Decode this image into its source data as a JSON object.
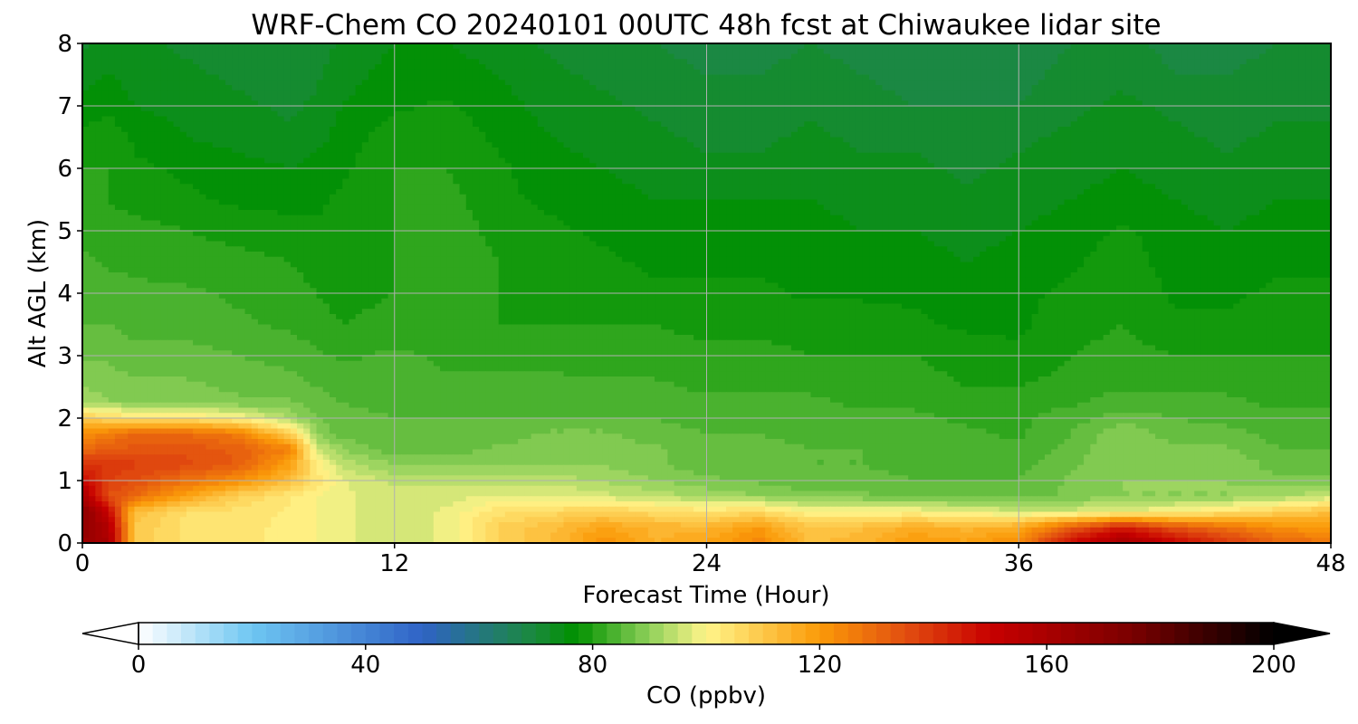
{
  "chart_data": {
    "type": "heatmap",
    "title": "WRF-Chem CO  20240101 00UTC 48h fcst at Chiwaukee lidar site",
    "xlabel": "Forecast Time (Hour)",
    "ylabel": "Alt AGL (km)",
    "xlim": [
      0,
      48
    ],
    "ylim": [
      0,
      8
    ],
    "xticks": [
      "0",
      "12",
      "24",
      "36",
      "48"
    ],
    "yticks": [
      "0",
      "1",
      "2",
      "3",
      "4",
      "5",
      "6",
      "7",
      "8"
    ],
    "grid": true,
    "colorbar": {
      "label": "CO  (ppbv)",
      "range": [
        0,
        200
      ],
      "ticks": [
        "0",
        "40",
        "80",
        "120",
        "160",
        "200"
      ],
      "extend": "both",
      "stops": [
        {
          "v": 0,
          "c": "#ffffff"
        },
        {
          "v": 20,
          "c": "#6ec6f2"
        },
        {
          "v": 50,
          "c": "#2f63c6"
        },
        {
          "v": 70,
          "c": "#1a8a3a"
        },
        {
          "v": 77,
          "c": "#009100"
        },
        {
          "v": 90,
          "c": "#8fd05a"
        },
        {
          "v": 100,
          "c": "#fff58a"
        },
        {
          "v": 120,
          "c": "#fb9a08"
        },
        {
          "v": 135,
          "c": "#e24f10"
        },
        {
          "v": 150,
          "c": "#c80000"
        },
        {
          "v": 175,
          "c": "#7a0000"
        },
        {
          "v": 200,
          "c": "#000000"
        }
      ],
      "under_color": "#ffffff",
      "over_color": "#000000"
    },
    "x": [
      0,
      1,
      2,
      4,
      6,
      8,
      9,
      10,
      12,
      14,
      16,
      18,
      20,
      22,
      24,
      26,
      28,
      30,
      32,
      34,
      36,
      38,
      40,
      42,
      44,
      46,
      48
    ],
    "y": [
      0,
      0.25,
      0.5,
      0.75,
      1.0,
      1.25,
      1.5,
      1.75,
      2.0,
      2.25,
      2.5,
      3.0,
      3.5,
      4.0,
      4.5,
      5.0,
      5.5,
      6.0,
      6.5,
      7.0,
      7.5,
      8.0
    ],
    "z": [
      [
        165,
        160,
        110,
        104,
        103,
        102,
        100,
        98,
        96,
        98,
        108,
        112,
        122,
        115,
        118,
        124,
        112,
        114,
        120,
        118,
        124,
        148,
        162,
        150,
        140,
        130,
        128
      ],
      [
        168,
        158,
        110,
        104,
        103,
        102,
        100,
        98,
        96,
        98,
        108,
        112,
        118,
        114,
        114,
        120,
        110,
        112,
        116,
        114,
        116,
        132,
        145,
        134,
        128,
        122,
        120
      ],
      [
        170,
        150,
        112,
        105,
        104,
        102,
        100,
        98,
        96,
        98,
        104,
        106,
        108,
        106,
        104,
        106,
        100,
        100,
        100,
        98,
        96,
        96,
        98,
        100,
        104,
        108,
        112
      ],
      [
        160,
        135,
        130,
        118,
        108,
        103,
        100,
        98,
        96,
        96,
        98,
        98,
        96,
        94,
        92,
        90,
        88,
        88,
        87,
        86,
        86,
        88,
        90,
        90,
        90,
        92,
        95
      ],
      [
        150,
        138,
        135,
        128,
        122,
        112,
        104,
        98,
        94,
        94,
        94,
        94,
        92,
        90,
        88,
        87,
        86,
        86,
        85,
        85,
        85,
        88,
        90,
        90,
        90,
        88,
        88
      ],
      [
        140,
        140,
        138,
        136,
        132,
        118,
        102,
        94,
        90,
        90,
        90,
        90,
        90,
        88,
        86,
        86,
        85,
        85,
        84,
        84,
        84,
        87,
        90,
        88,
        90,
        86,
        86
      ],
      [
        130,
        132,
        134,
        134,
        132,
        125,
        96,
        90,
        86,
        86,
        88,
        89,
        89,
        88,
        86,
        86,
        85,
        85,
        84,
        84,
        83,
        86,
        90,
        88,
        88,
        85,
        85
      ],
      [
        122,
        126,
        130,
        130,
        126,
        108,
        90,
        86,
        86,
        86,
        86,
        88,
        88,
        86,
        85,
        85,
        84,
        84,
        84,
        83,
        82,
        85,
        90,
        86,
        86,
        84,
        84
      ],
      [
        110,
        106,
        104,
        104,
        100,
        92,
        88,
        86,
        85,
        85,
        85,
        85,
        85,
        85,
        84,
        84,
        84,
        83,
        83,
        82,
        82,
        84,
        86,
        85,
        84,
        83,
        83
      ],
      [
        92,
        90,
        90,
        89,
        88,
        88,
        86,
        85,
        84,
        84,
        84,
        84,
        84,
        84,
        83,
        83,
        83,
        82,
        82,
        81,
        81,
        82,
        84,
        84,
        83,
        82,
        82
      ],
      [
        90,
        89,
        88,
        88,
        87,
        86,
        85,
        84,
        84,
        83,
        83,
        83,
        83,
        83,
        82,
        82,
        82,
        82,
        81,
        80,
        80,
        81,
        82,
        82,
        82,
        81,
        81
      ],
      [
        87,
        87,
        86,
        86,
        85,
        84,
        83,
        82,
        83,
        82,
        82,
        82,
        81,
        81,
        81,
        81,
        80,
        80,
        80,
        79,
        78,
        80,
        81,
        80,
        80,
        80,
        80
      ],
      [
        85,
        85,
        84,
        84,
        83,
        82,
        81,
        80,
        81,
        81,
        80,
        80,
        80,
        80,
        79,
        79,
        79,
        79,
        78,
        77,
        77,
        79,
        80,
        78,
        78,
        79,
        79
      ],
      [
        84,
        84,
        83,
        83,
        82,
        81,
        80,
        79,
        80,
        80,
        80,
        79,
        79,
        78,
        78,
        78,
        77,
        77,
        77,
        76,
        77,
        78,
        80,
        77,
        77,
        78,
        78
      ],
      [
        83,
        82,
        82,
        81,
        81,
        80,
        79,
        78,
        80,
        82,
        80,
        79,
        78,
        77,
        77,
        77,
        77,
        76,
        76,
        75,
        76,
        77,
        79,
        76,
        76,
        77,
        77
      ],
      [
        82,
        81,
        81,
        80,
        79,
        78,
        78,
        78,
        80,
        82,
        79,
        78,
        77,
        76,
        76,
        76,
        76,
        75,
        75,
        74,
        75,
        76,
        78,
        76,
        75,
        76,
        76
      ],
      [
        81,
        80,
        79,
        78,
        77,
        77,
        77,
        78,
        80,
        81,
        78,
        77,
        76,
        75,
        75,
        75,
        75,
        74,
        74,
        73,
        74,
        75,
        76,
        75,
        74,
        75,
        75
      ],
      [
        80,
        80,
        78,
        77,
        76,
        75,
        76,
        77,
        80,
        80,
        78,
        76,
        75,
        74,
        73,
        73,
        74,
        73,
        73,
        72,
        73,
        74,
        75,
        74,
        73,
        74,
        74
      ],
      [
        78,
        79,
        77,
        75,
        74,
        73,
        74,
        76,
        79,
        79,
        77,
        75,
        74,
        73,
        72,
        72,
        73,
        72,
        72,
        71,
        72,
        73,
        74,
        73,
        72,
        73,
        73
      ],
      [
        76,
        77,
        75,
        74,
        73,
        72,
        73,
        75,
        77,
        78,
        76,
        74,
        73,
        72,
        71,
        71,
        72,
        71,
        70,
        70,
        70,
        72,
        73,
        72,
        71,
        72,
        72
      ],
      [
        74,
        75,
        74,
        73,
        72,
        71,
        72,
        74,
        76,
        76,
        75,
        73,
        72,
        71,
        70,
        70,
        71,
        70,
        69,
        69,
        69,
        71,
        72,
        70,
        70,
        71,
        71
      ],
      [
        72,
        73,
        73,
        72,
        71,
        70,
        71,
        73,
        75,
        75,
        74,
        72,
        71,
        70,
        69,
        69,
        70,
        69,
        68,
        68,
        68,
        70,
        71,
        69,
        69,
        70,
        70
      ]
    ]
  }
}
